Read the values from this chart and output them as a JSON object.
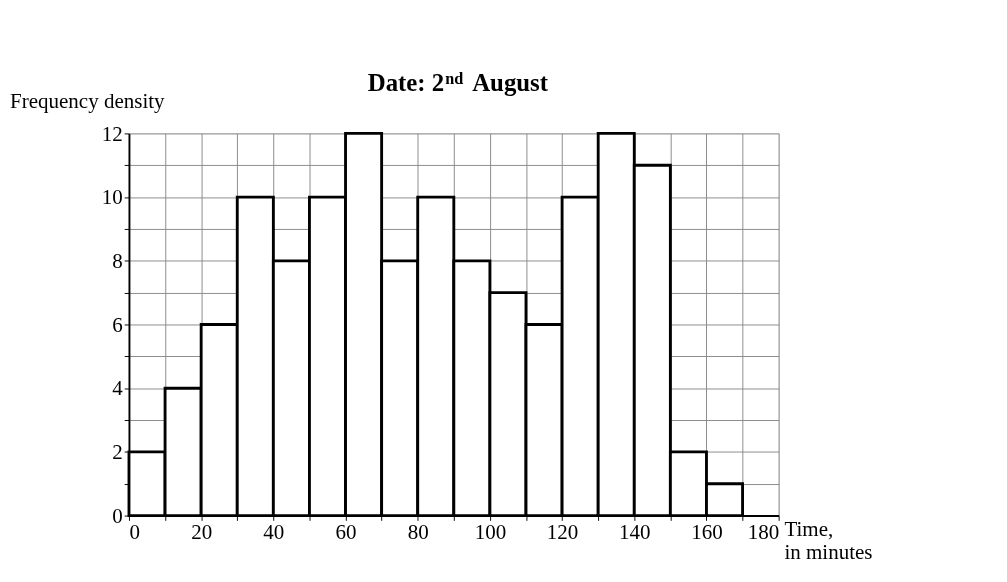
{
  "chart_data": {
    "type": "histogram",
    "title": "Date: 2$^{nd}$ August",
    "xlabel": "Time, in minutes",
    "ylabel": "Frequency density",
    "bins": [
      0,
      10,
      20,
      30,
      40,
      50,
      60,
      70,
      80,
      90,
      100,
      110,
      120,
      130,
      140,
      150,
      160,
      170
    ],
    "values": [
      2,
      4,
      6,
      10,
      8,
      10,
      12,
      8,
      10,
      8,
      7,
      6,
      10,
      12,
      11,
      2,
      1
    ],
    "color": "#ffffff",
    "xlim": [
      0,
      180
    ],
    "ylim": [
      0,
      12
    ],
    "xticks": [
      0,
      {
        "value": 10,
        "label": null
      },
      20,
      {
        "value": 30,
        "label": null
      },
      40,
      {
        "value": 50,
        "label": null
      },
      60,
      {
        "value": 70,
        "label": null
      },
      80,
      {
        "value": 90,
        "label": null
      },
      100,
      {
        "value": 110,
        "label": null
      },
      120,
      {
        "value": 130,
        "label": null
      },
      140,
      {
        "value": 150,
        "label": null
      },
      160,
      {
        "value": 170,
        "label": null
      },
      180
    ],
    "yticks": [
      0,
      {
        "value": 1,
        "label": null
      },
      2,
      {
        "value": 3,
        "label": null
      },
      4,
      {
        "value": 5,
        "label": null
      },
      6,
      {
        "value": 7,
        "label": null
      },
      8,
      {
        "value": 9,
        "label": null
      },
      10,
      {
        "value": 11,
        "label": null
      },
      12
    ],
    "grid": true
  }
}
